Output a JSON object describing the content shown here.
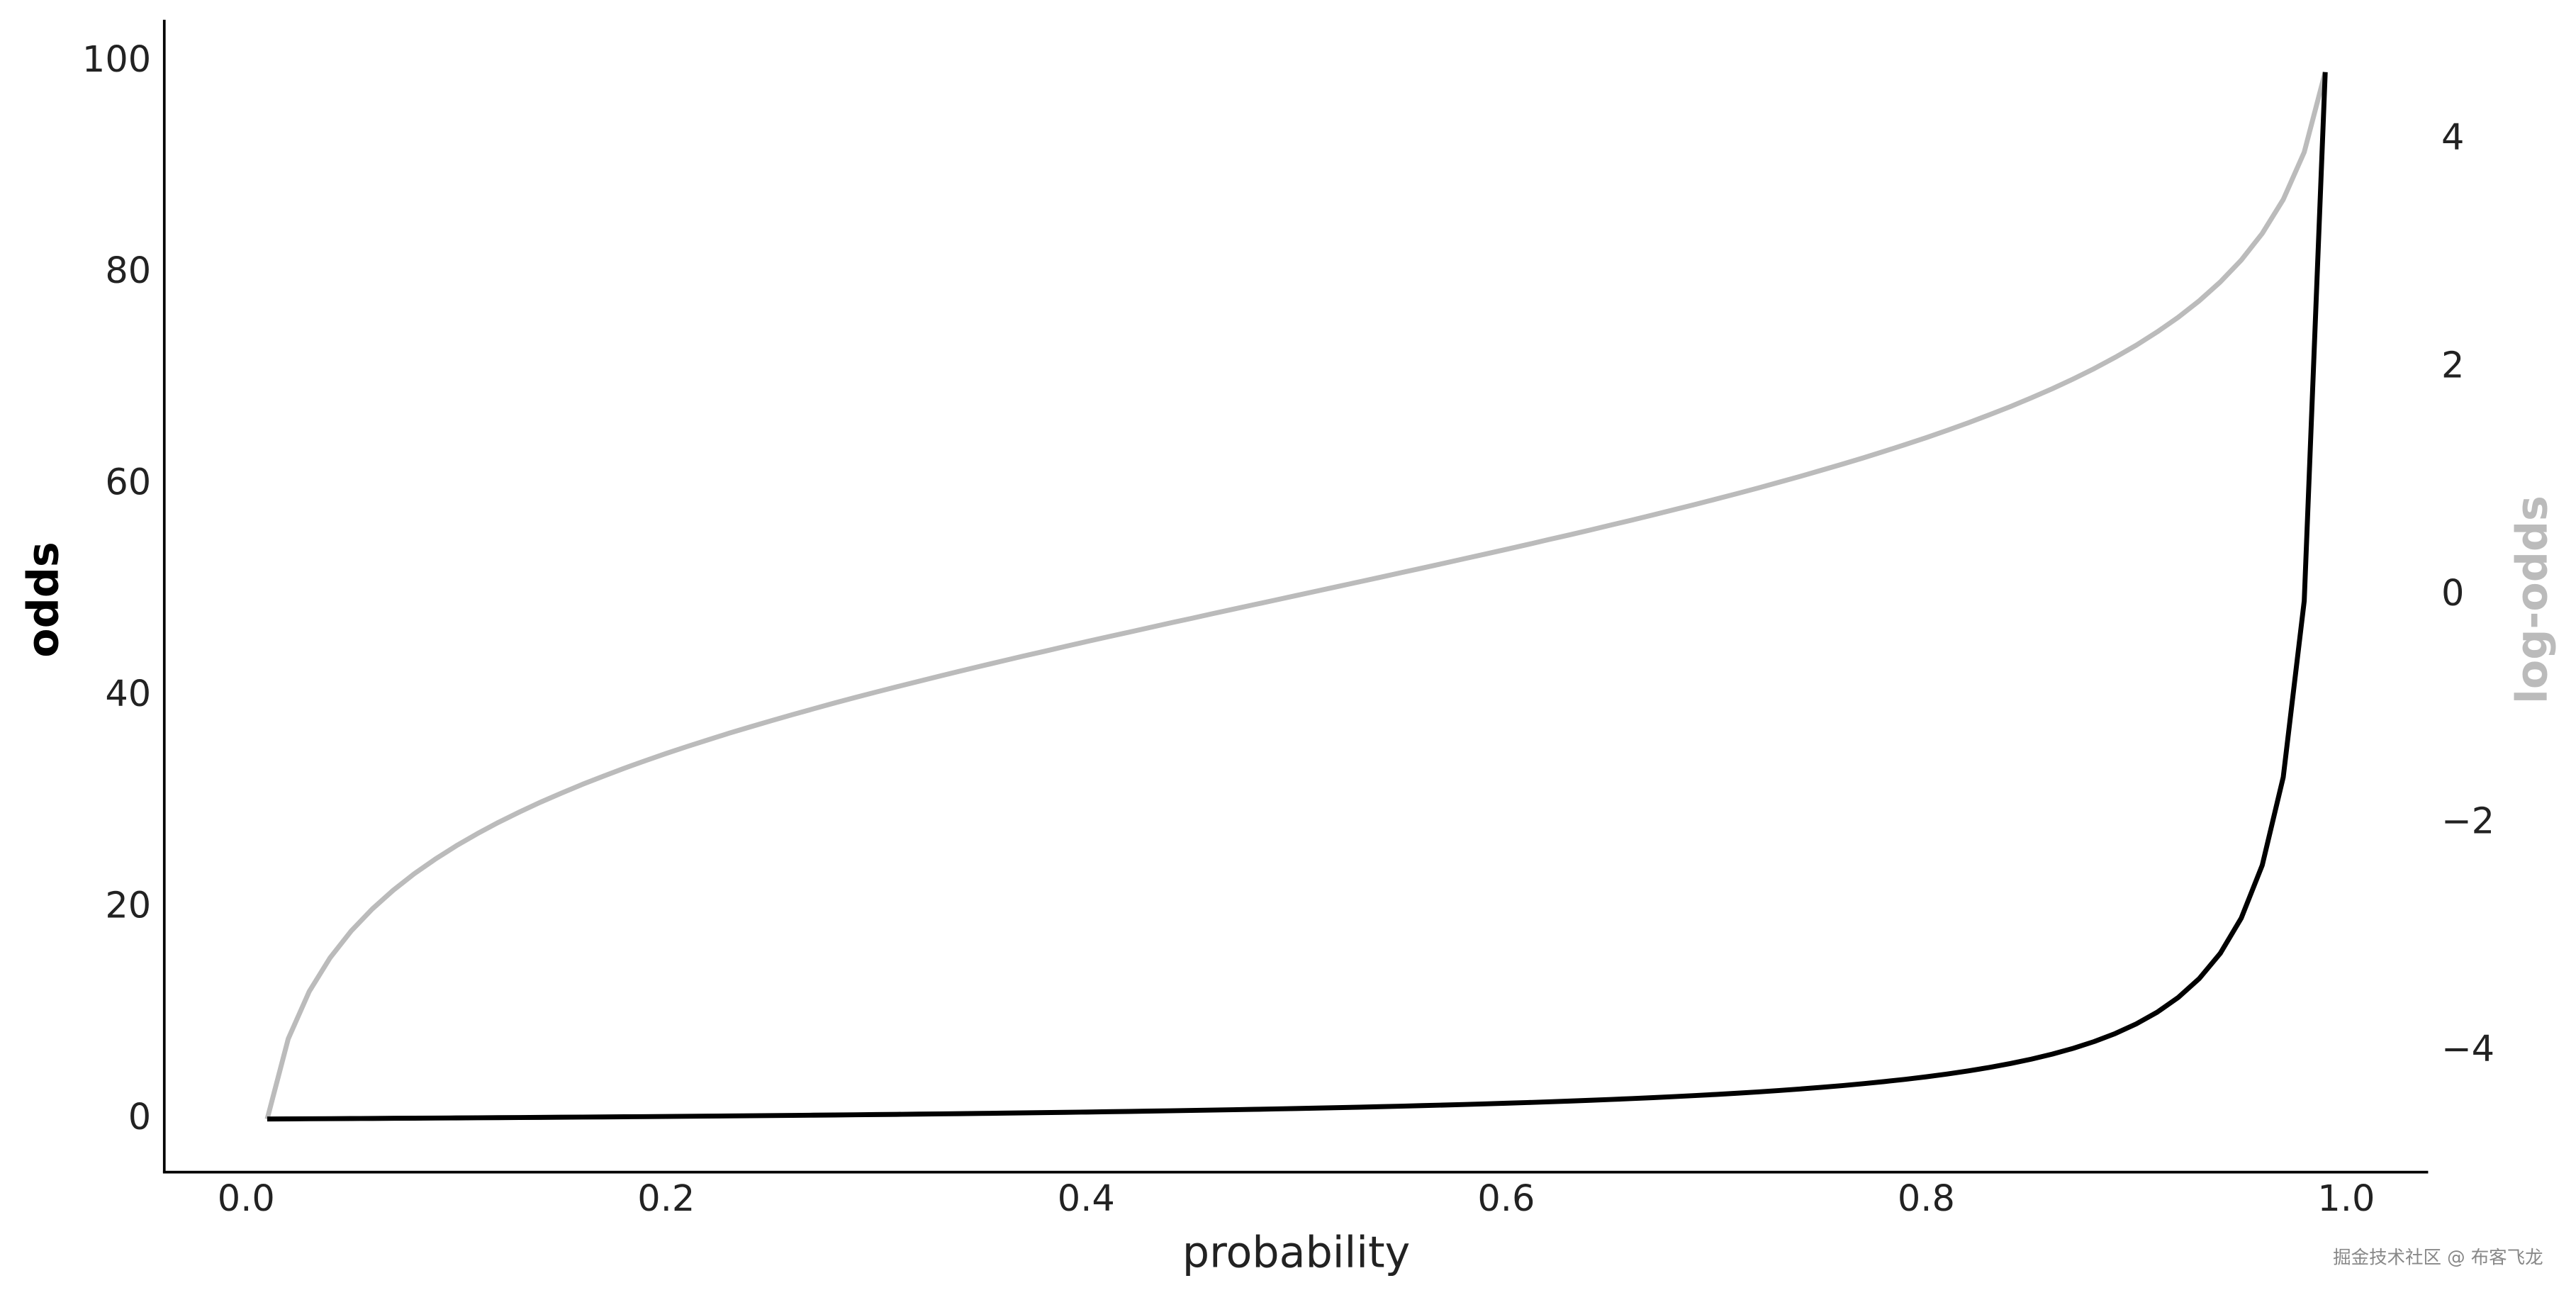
{
  "chart_data": {
    "type": "line",
    "x_label": "probability",
    "y_label": "odds",
    "y2_label": "log-odds",
    "watermark": "掘金技术社区 @ 布客飞龙",
    "x": [
      0.01,
      0.02,
      0.03,
      0.04,
      0.05,
      0.06,
      0.07,
      0.08,
      0.09,
      0.1,
      0.11,
      0.12,
      0.13,
      0.14,
      0.15,
      0.16,
      0.17,
      0.18,
      0.19,
      0.2,
      0.21,
      0.22,
      0.23,
      0.24,
      0.25,
      0.26,
      0.27,
      0.28,
      0.29,
      0.3,
      0.31,
      0.32,
      0.33,
      0.34,
      0.35,
      0.36,
      0.37,
      0.38,
      0.39,
      0.4,
      0.41,
      0.42,
      0.43,
      0.44,
      0.45,
      0.46,
      0.47,
      0.48,
      0.49,
      0.5,
      0.51,
      0.52,
      0.53,
      0.54,
      0.55,
      0.56,
      0.57,
      0.58,
      0.59,
      0.6,
      0.61,
      0.62,
      0.63,
      0.64,
      0.65,
      0.66,
      0.67,
      0.68,
      0.69,
      0.7,
      0.71,
      0.72,
      0.73,
      0.74,
      0.75,
      0.76,
      0.77,
      0.78,
      0.79,
      0.8,
      0.81,
      0.82,
      0.83,
      0.84,
      0.85,
      0.86,
      0.87,
      0.88,
      0.89,
      0.9,
      0.91,
      0.92,
      0.93,
      0.94,
      0.95,
      0.96,
      0.97,
      0.98,
      0.99
    ],
    "series": [
      {
        "name": "odds",
        "color": "#000000",
        "axis": "y",
        "values": [
          0.0101,
          0.0204,
          0.0309,
          0.0417,
          0.0526,
          0.0638,
          0.0753,
          0.087,
          0.0989,
          0.1111,
          0.1236,
          0.1364,
          0.1494,
          0.1628,
          0.1765,
          0.1905,
          0.2048,
          0.2195,
          0.2346,
          0.25,
          0.2658,
          0.2821,
          0.2987,
          0.3158,
          0.3333,
          0.3514,
          0.3699,
          0.3889,
          0.4085,
          0.4286,
          0.4493,
          0.4706,
          0.4925,
          0.5152,
          0.5385,
          0.5625,
          0.5873,
          0.6129,
          0.6393,
          0.6667,
          0.6949,
          0.7241,
          0.7544,
          0.7857,
          0.8182,
          0.8519,
          0.8868,
          0.9231,
          0.9608,
          1,
          1.0408,
          1.0833,
          1.1277,
          1.1739,
          1.2222,
          1.2727,
          1.3256,
          1.381,
          1.439,
          1.5,
          1.5641,
          1.6316,
          1.7027,
          1.7778,
          1.8571,
          1.9412,
          2.0303,
          2.125,
          2.2258,
          2.3333,
          2.4483,
          2.5714,
          2.7037,
          2.8462,
          3,
          3.1667,
          3.3478,
          3.5455,
          3.7619,
          4,
          4.2632,
          4.5556,
          4.8824,
          5.25,
          5.6667,
          6.1429,
          6.6923,
          7.3333,
          8.0909,
          9,
          10.1111,
          11.5,
          13.2857,
          15.6667,
          19,
          24,
          32.3333,
          49,
          99
        ]
      },
      {
        "name": "log-odds",
        "color": "#bbbbbb",
        "axis": "y2",
        "values": [
          -4.595,
          -3.892,
          -3.476,
          -3.178,
          -2.944,
          -2.752,
          -2.587,
          -2.442,
          -2.314,
          -2.197,
          -2.091,
          -1.992,
          -1.901,
          -1.815,
          -1.735,
          -1.658,
          -1.586,
          -1.516,
          -1.45,
          -1.386,
          -1.325,
          -1.266,
          -1.208,
          -1.153,
          -1.099,
          -1.046,
          -0.995,
          -0.944,
          -0.895,
          -0.847,
          -0.8,
          -0.754,
          -0.708,
          -0.663,
          -0.619,
          -0.575,
          -0.532,
          -0.49,
          -0.447,
          -0.405,
          -0.364,
          -0.323,
          -0.282,
          -0.241,
          -0.201,
          -0.16,
          -0.12,
          -0.08,
          -0.04,
          0,
          0.04,
          0.08,
          0.12,
          0.16,
          0.201,
          0.241,
          0.282,
          0.323,
          0.364,
          0.405,
          0.447,
          0.49,
          0.532,
          0.575,
          0.619,
          0.663,
          0.708,
          0.754,
          0.8,
          0.847,
          0.895,
          0.944,
          0.995,
          1.046,
          1.099,
          1.153,
          1.208,
          1.266,
          1.325,
          1.386,
          1.45,
          1.516,
          1.586,
          1.658,
          1.735,
          1.815,
          1.901,
          1.992,
          2.091,
          2.197,
          2.314,
          2.442,
          2.587,
          2.752,
          2.944,
          3.178,
          3.476,
          3.892,
          4.595
        ]
      }
    ],
    "xlim": [
      -0.039,
      1.039
    ],
    "xticks": [
      {
        "value": 0,
        "label": "0.0"
      },
      0.2,
      0.4,
      0.6,
      0.8,
      {
        "value": 1,
        "label": "1.0"
      }
    ],
    "ylim": [
      -4.94,
      103.95
    ],
    "yticks": [
      0,
      20,
      40,
      60,
      80,
      100
    ],
    "y2lim": [
      -5.054,
      5.054
    ],
    "y2ticks": [
      {
        "value": -4,
        "label": "−4"
      },
      {
        "value": -2,
        "label": "−2"
      },
      0,
      2,
      4
    ],
    "grid": false
  }
}
